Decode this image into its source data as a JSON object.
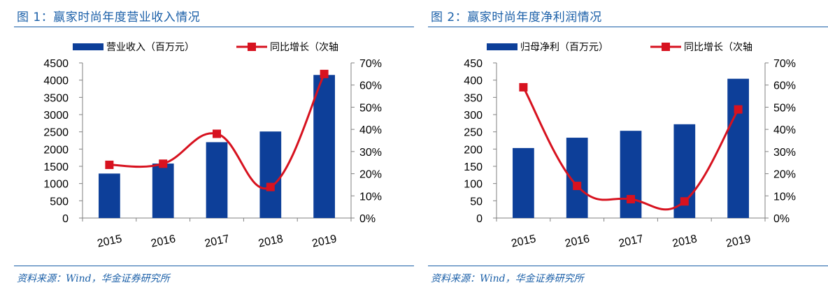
{
  "colors": {
    "bar": "#0d3f99",
    "line": "#d7121f",
    "title": "#1a5fa8"
  },
  "chart_data": [
    {
      "type": "bar",
      "title": "图 1：嬴家时尚年度营业收入情况",
      "source": "资料来源：Wind，华金证券研究所",
      "categories": [
        "2015",
        "2016",
        "2017",
        "2018",
        "2019"
      ],
      "series": [
        {
          "name": "营业收入（百万元）",
          "type": "bar",
          "axis": "left",
          "values": [
            1290,
            1580,
            2200,
            2510,
            4150
          ]
        },
        {
          "name": "同比增长（次轴",
          "type": "line",
          "axis": "right",
          "values": [
            0.24,
            0.245,
            0.38,
            0.14,
            0.65
          ]
        }
      ],
      "ylim": [
        0,
        4500
      ],
      "yticks": [
        "0",
        "500",
        "1000",
        "1500",
        "2000",
        "2500",
        "3000",
        "3500",
        "4000",
        "4500"
      ],
      "y2lim": [
        0,
        0.7
      ],
      "y2ticks": [
        "0%",
        "10%",
        "20%",
        "30%",
        "40%",
        "50%",
        "60%",
        "70%"
      ],
      "legend": "top",
      "grid": false
    },
    {
      "type": "bar",
      "title": "图 2：嬴家时尚年度净利润情况",
      "source": "资料来源：Wind，华金证券研究所",
      "categories": [
        "2015",
        "2016",
        "2017",
        "2018",
        "2019"
      ],
      "series": [
        {
          "name": "归母净利（百万元）",
          "type": "bar",
          "axis": "left",
          "values": [
            203,
            233,
            253,
            272,
            404
          ]
        },
        {
          "name": "同比增长（次轴",
          "type": "line",
          "axis": "right",
          "values": [
            0.59,
            0.145,
            0.085,
            0.075,
            0.49
          ]
        }
      ],
      "ylim": [
        0,
        450
      ],
      "yticks": [
        "0",
        "50",
        "100",
        "150",
        "200",
        "250",
        "300",
        "350",
        "400",
        "450"
      ],
      "y2lim": [
        0,
        0.7
      ],
      "y2ticks": [
        "0%",
        "10%",
        "20%",
        "30%",
        "40%",
        "50%",
        "60%",
        "70%"
      ],
      "legend": "top",
      "grid": false
    }
  ]
}
